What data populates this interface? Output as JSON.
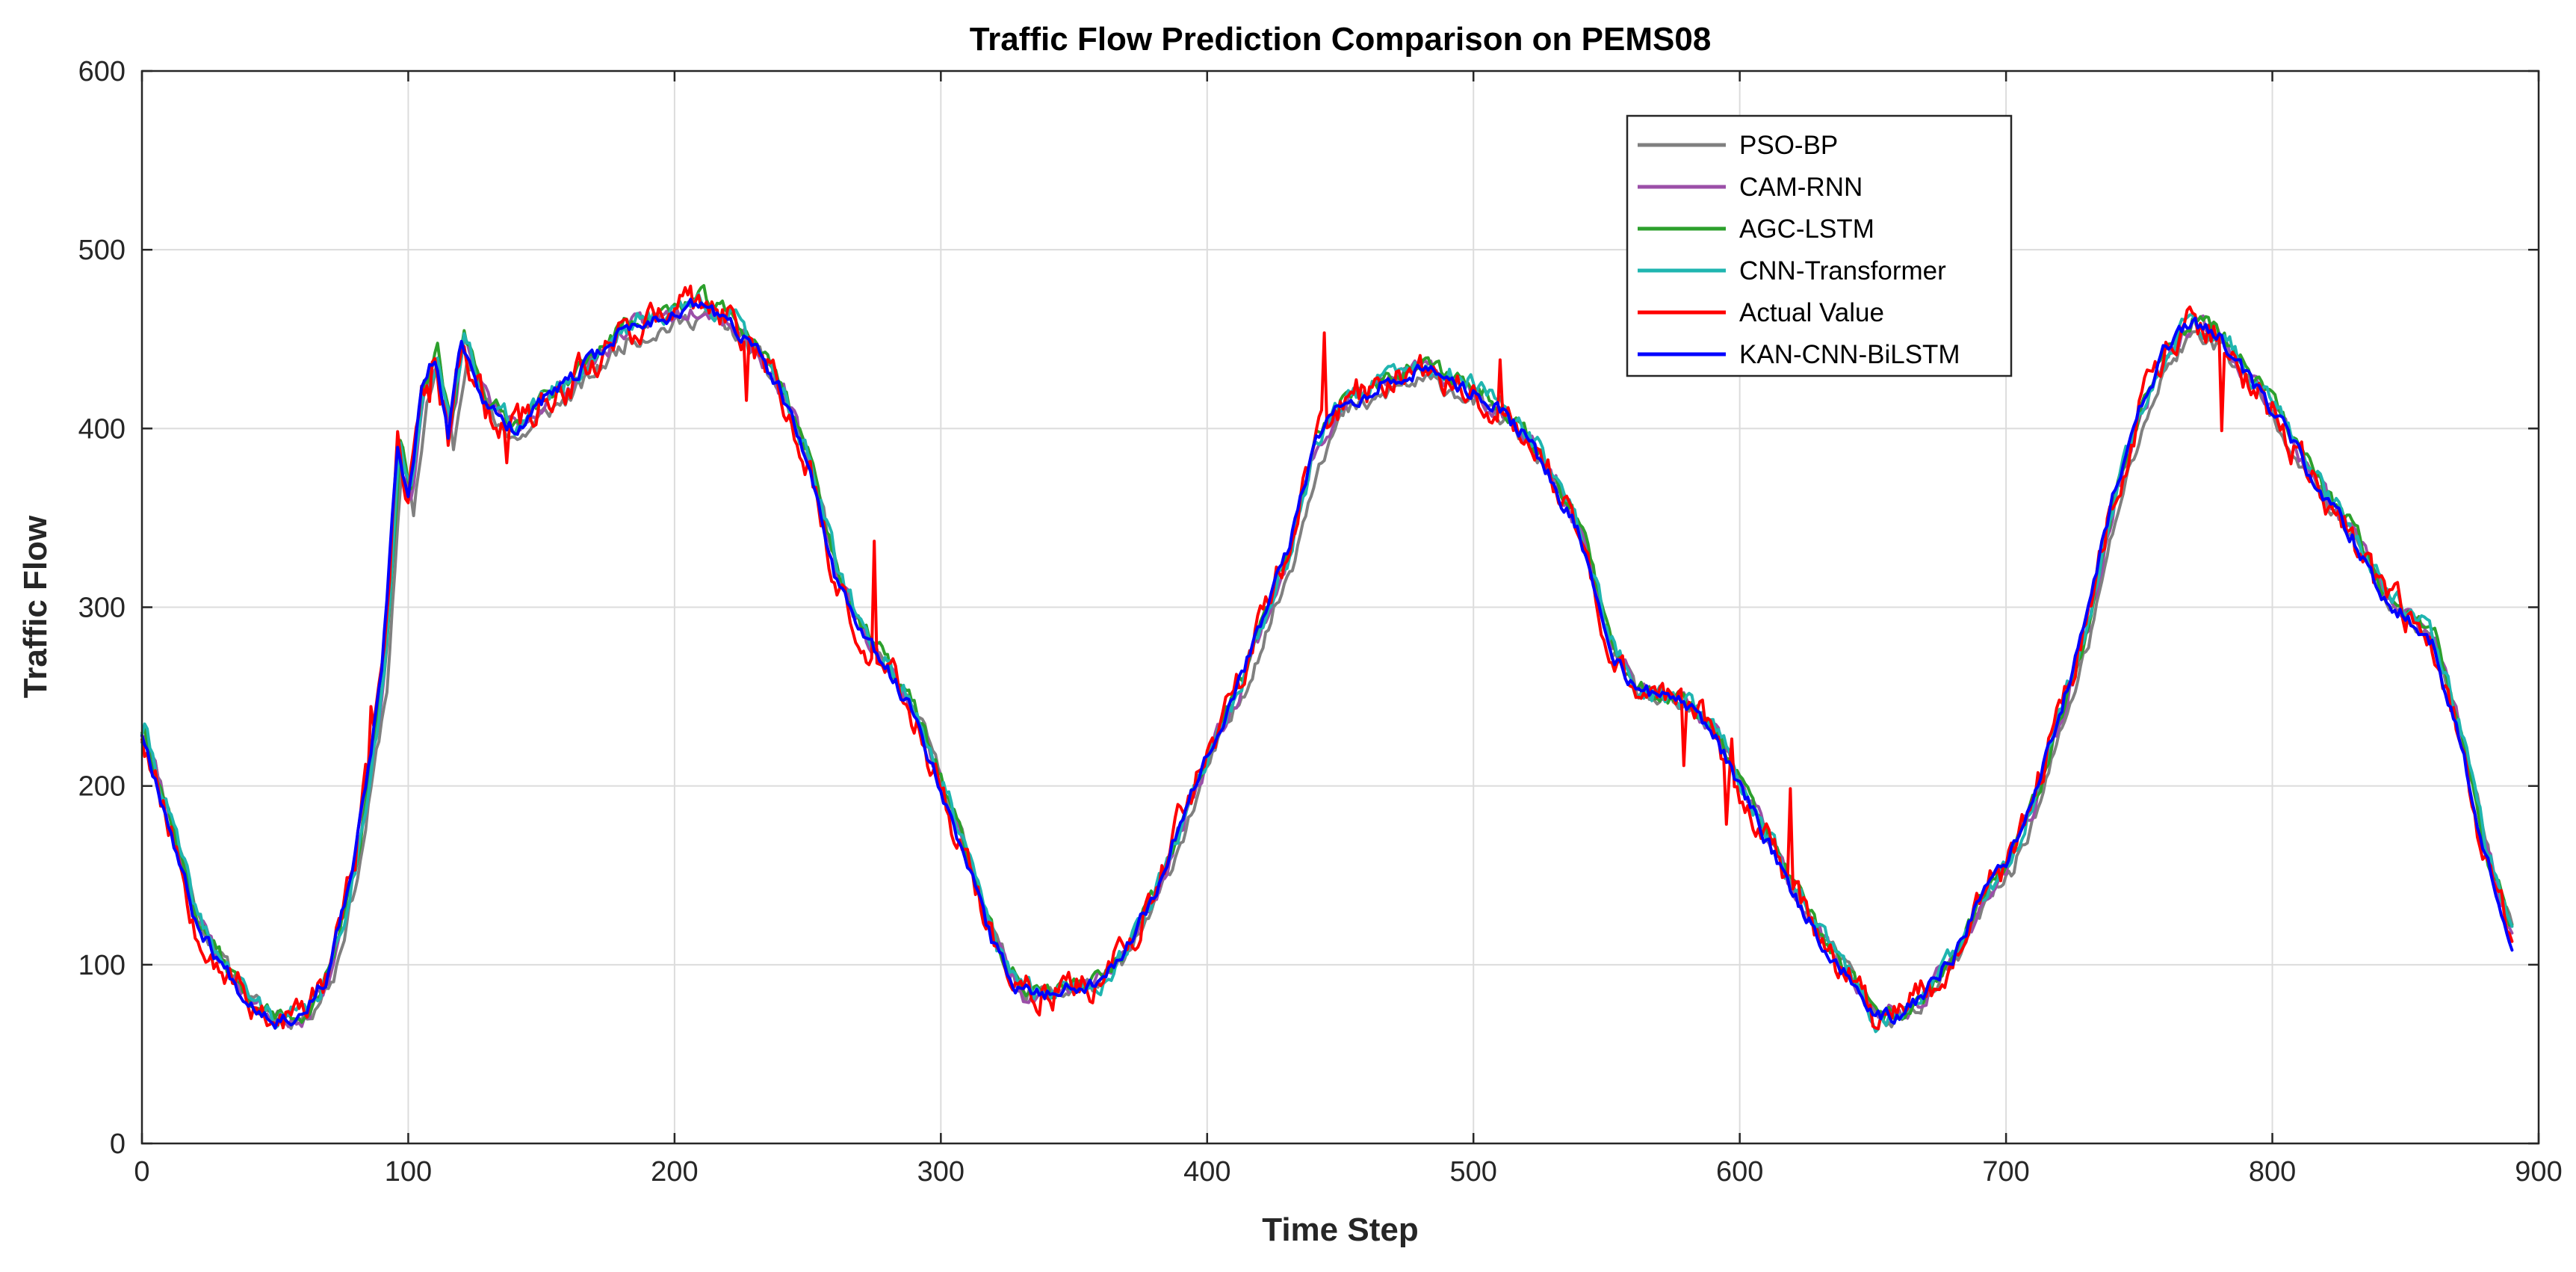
{
  "chart_data": {
    "type": "line",
    "title": "Traffic Flow Prediction Comparison on PEMS08",
    "xlabel": "Time Step",
    "ylabel": "Traffic Flow",
    "xlim": [
      0,
      900
    ],
    "ylim": [
      0,
      600
    ],
    "xticks": [
      0,
      100,
      200,
      300,
      400,
      500,
      600,
      700,
      800,
      900
    ],
    "yticks": [
      0,
      100,
      200,
      300,
      400,
      500,
      600
    ],
    "grid": true,
    "legend_position": "top-right",
    "x_range": [
      0,
      890
    ],
    "base_curve": [
      [
        0,
        230
      ],
      [
        10,
        180
      ],
      [
        20,
        125
      ],
      [
        30,
        100
      ],
      [
        40,
        80
      ],
      [
        50,
        70
      ],
      [
        60,
        72
      ],
      [
        70,
        95
      ],
      [
        80,
        160
      ],
      [
        90,
        260
      ],
      [
        96,
        390
      ],
      [
        100,
        360
      ],
      [
        105,
        420
      ],
      [
        110,
        440
      ],
      [
        115,
        395
      ],
      [
        120,
        450
      ],
      [
        125,
        430
      ],
      [
        130,
        410
      ],
      [
        140,
        400
      ],
      [
        150,
        415
      ],
      [
        160,
        425
      ],
      [
        170,
        440
      ],
      [
        180,
        455
      ],
      [
        190,
        460
      ],
      [
        200,
        465
      ],
      [
        210,
        470
      ],
      [
        220,
        460
      ],
      [
        230,
        445
      ],
      [
        240,
        420
      ],
      [
        250,
        380
      ],
      [
        260,
        320
      ],
      [
        270,
        285
      ],
      [
        280,
        265
      ],
      [
        290,
        240
      ],
      [
        300,
        200
      ],
      [
        310,
        155
      ],
      [
        320,
        110
      ],
      [
        330,
        85
      ],
      [
        340,
        85
      ],
      [
        350,
        88
      ],
      [
        360,
        92
      ],
      [
        370,
        110
      ],
      [
        380,
        140
      ],
      [
        390,
        180
      ],
      [
        400,
        220
      ],
      [
        410,
        250
      ],
      [
        420,
        290
      ],
      [
        430,
        330
      ],
      [
        440,
        390
      ],
      [
        450,
        415
      ],
      [
        460,
        420
      ],
      [
        470,
        430
      ],
      [
        480,
        432
      ],
      [
        490,
        428
      ],
      [
        500,
        420
      ],
      [
        510,
        410
      ],
      [
        520,
        395
      ],
      [
        530,
        370
      ],
      [
        540,
        340
      ],
      [
        550,
        280
      ],
      [
        560,
        255
      ],
      [
        570,
        250
      ],
      [
        580,
        245
      ],
      [
        590,
        230
      ],
      [
        600,
        200
      ],
      [
        610,
        170
      ],
      [
        620,
        140
      ],
      [
        630,
        115
      ],
      [
        640,
        95
      ],
      [
        650,
        70
      ],
      [
        660,
        72
      ],
      [
        670,
        85
      ],
      [
        680,
        105
      ],
      [
        690,
        135
      ],
      [
        700,
        155
      ],
      [
        710,
        190
      ],
      [
        720,
        240
      ],
      [
        730,
        290
      ],
      [
        740,
        360
      ],
      [
        750,
        410
      ],
      [
        760,
        445
      ],
      [
        770,
        460
      ],
      [
        780,
        450
      ],
      [
        790,
        430
      ],
      [
        800,
        410
      ],
      [
        810,
        385
      ],
      [
        820,
        360
      ],
      [
        830,
        340
      ],
      [
        840,
        310
      ],
      [
        850,
        295
      ],
      [
        860,
        280
      ],
      [
        870,
        230
      ],
      [
        880,
        160
      ],
      [
        890,
        115
      ]
    ],
    "series": [
      {
        "name": "PSO-BP",
        "color": "#808080",
        "seed": 11,
        "noise": 9,
        "lag": 2,
        "bias": -6
      },
      {
        "name": "CAM-RNN",
        "color": "#9b4fa8",
        "seed": 23,
        "noise": 10,
        "lag": 1,
        "bias": 0
      },
      {
        "name": "AGC-LSTM",
        "color": "#2ca02c",
        "seed": 37,
        "noise": 9,
        "lag": 1,
        "bias": 3
      },
      {
        "name": "CNN-Transformer",
        "color": "#1fb5b0",
        "seed": 41,
        "noise": 11,
        "lag": 1,
        "bias": 2
      },
      {
        "name": "Actual Value",
        "color": "#ff0000",
        "seed": 53,
        "noise": 18,
        "lag": 0,
        "bias": 0
      },
      {
        "name": "KAN-CNN-BiLSTM",
        "color": "#0000ff",
        "seed": 67,
        "noise": 8,
        "lag": 0,
        "bias": 0
      }
    ],
    "legend_entries": [
      "PSO-BP",
      "CAM-RNN",
      "AGC-LSTM",
      "CNN-Transformer",
      "Actual Value",
      "KAN-CNN-BiLSTM"
    ]
  }
}
